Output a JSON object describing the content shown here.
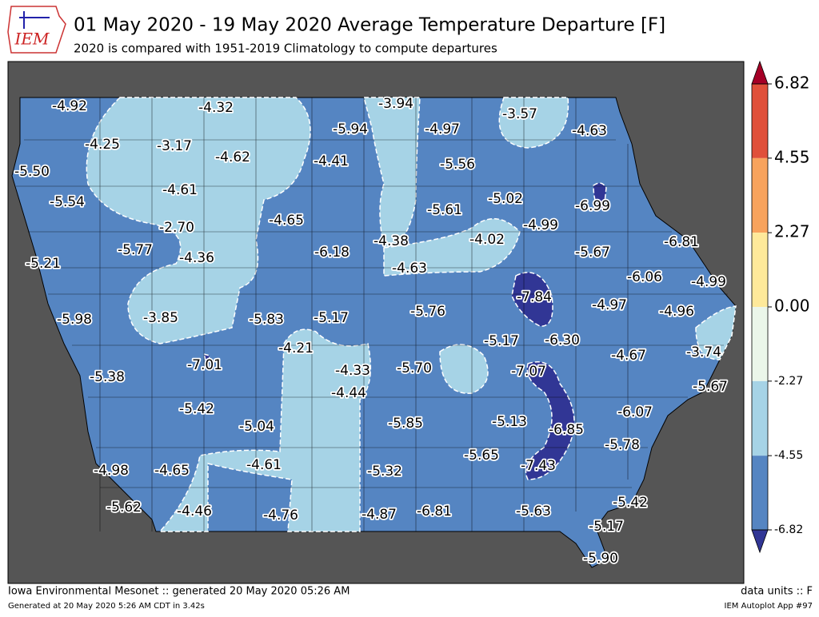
{
  "header": {
    "logo": "IEM",
    "title": "01 May 2020 - 19 May 2020 Average Temperature Departure [F]",
    "subtitle": "2020 is compared with 1951-2019 Climatology to compute departures"
  },
  "stations": {
    "values": [
      -4.92,
      -4.32,
      -3.94,
      -5.94,
      -4.97,
      -3.57,
      -4.63,
      -4.25,
      -3.17,
      -4.62,
      -4.41,
      -5.56,
      -5.5,
      -4.61,
      -5.54,
      -5.02,
      -6.99,
      -5.61,
      -4.65,
      -2.7,
      -4.99,
      -4.38,
      -4.02,
      -6.81,
      -5.77,
      -4.36,
      -5.21,
      -6.18,
      -5.67,
      -4.63,
      -6.06,
      -4.99,
      -7.84,
      -5.98,
      -3.85,
      -5.83,
      -5.17,
      -5.76,
      -4.97,
      -4.96,
      -5.17,
      -6.3,
      -4.21,
      -3.74,
      -4.67,
      -7.01,
      -4.33,
      -5.7,
      -7.07,
      -5.38,
      -4.44,
      -5.67,
      -5.42,
      -6.07,
      -5.13,
      -5.85,
      -5.04,
      -6.85,
      -5.78,
      -5.65,
      -4.61,
      -7.43,
      -4.98,
      -4.65,
      -5.32,
      -5.42,
      -5.62,
      -4.46,
      -4.76,
      -4.87,
      -6.81,
      -5.63,
      -5.17,
      -5.9
    ],
    "value_labels": [
      "-4.92",
      "-4.32",
      "-3.94",
      "-5.94",
      "-4.97",
      "-3.57",
      "-4.63",
      "-4.25",
      "-3.17",
      "-4.62",
      "-4.41",
      "-5.56",
      "-5.50",
      "-4.61",
      "-5.54",
      "-5.02",
      "-6.99",
      "-5.61",
      "-4.65",
      "-2.70",
      "-4.99",
      "-4.38",
      "-4.02",
      "-6.81",
      "-5.77",
      "-4.36",
      "-5.21",
      "-6.18",
      "-5.67",
      "-4.63",
      "-6.06",
      "-4.99",
      "-7.84",
      "-5.98",
      "-3.85",
      "-5.83",
      "-5.17",
      "-5.76",
      "-4.97",
      "-4.96",
      "-5.17",
      "-6.30",
      "-4.21",
      "-3.74",
      "-4.67",
      "-7.01",
      "-4.33",
      "-5.70",
      "-7.07",
      "-5.38",
      "-4.44",
      "-5.67",
      "-5.42",
      "-6.07",
      "-5.13",
      "-5.85",
      "-5.04",
      "-6.85",
      "-5.78",
      "-5.65",
      "-4.61",
      "-7.43",
      "-4.98",
      "-4.65",
      "-5.32",
      "-5.42",
      "-5.62",
      "-4.46",
      "-4.76",
      "-4.87",
      "-6.81",
      "-5.63",
      "-5.17",
      "-5.90"
    ]
  },
  "colorbar": {
    "ticks": [
      6.82,
      4.55,
      2.27,
      {
        "value": 0,
        "label": "0.00"
      },
      -2.27,
      -4.55,
      -6.82
    ],
    "colors": [
      "#e0503a",
      "#f8a35d",
      "#fee99a",
      "#ebf6ea",
      "#a6d3e6",
      "#5585c2"
    ],
    "over_color": "#a50026",
    "under_color": "#313695"
  },
  "footer": {
    "left": "Iowa Environmental Mesonet :: generated 20 May 2020 05:26 AM",
    "right": "data units :: F",
    "note": "Generated at 20 May 2020 5:26 AM CDT in 3.42s",
    "app": "IEM Autoplot App #97"
  }
}
